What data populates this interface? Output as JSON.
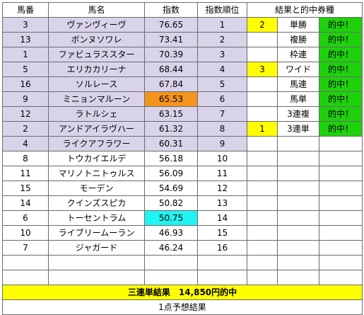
{
  "headers": {
    "umaban": "馬番",
    "bamei": "馬名",
    "shisu": "指数",
    "juni": "指数順位",
    "kekka": "結果と的中券種"
  },
  "horses": [
    {
      "umaban": "3",
      "name": "ヴァンヴィーヴ",
      "index": "76.65",
      "rank": "1"
    },
    {
      "umaban": "13",
      "name": "ボンヌソワレ",
      "index": "73.41",
      "rank": "2"
    },
    {
      "umaban": "1",
      "name": "ファビュラススター",
      "index": "70.39",
      "rank": "3"
    },
    {
      "umaban": "5",
      "name": "エリカカリーナ",
      "index": "68.44",
      "rank": "4"
    },
    {
      "umaban": "16",
      "name": "ソルレース",
      "index": "67.84",
      "rank": "5"
    },
    {
      "umaban": "9",
      "name": "ミニョンマルーン",
      "index": "65.53",
      "rank": "6"
    },
    {
      "umaban": "12",
      "name": "ラトルシェ",
      "index": "63.15",
      "rank": "7"
    },
    {
      "umaban": "2",
      "name": "アンドアイラヴハー",
      "index": "61.32",
      "rank": "8"
    },
    {
      "umaban": "4",
      "name": "ライクアフラワー",
      "index": "60.31",
      "rank": "9"
    },
    {
      "umaban": "8",
      "name": "トウカイエルデ",
      "index": "56.18",
      "rank": "10"
    },
    {
      "umaban": "11",
      "name": "マリノトニトゥルス",
      "index": "56.09",
      "rank": "11"
    },
    {
      "umaban": "15",
      "name": "モーデン",
      "index": "54.69",
      "rank": "12"
    },
    {
      "umaban": "14",
      "name": "クインズスピカ",
      "index": "50.82",
      "rank": "13"
    },
    {
      "umaban": "6",
      "name": "トーセントラム",
      "index": "50.75",
      "rank": "14"
    },
    {
      "umaban": "10",
      "name": "ライブリームーラン",
      "index": "46.93",
      "rank": "15"
    },
    {
      "umaban": "7",
      "name": "ジャガード",
      "index": "46.24",
      "rank": "16"
    }
  ],
  "results": [
    {
      "place": "2",
      "ticket": "単勝",
      "hit": "的中！"
    },
    {
      "place": "",
      "ticket": "複勝",
      "hit": "的中！"
    },
    {
      "place": "",
      "ticket": "枠連",
      "hit": "的中！"
    },
    {
      "place": "3",
      "ticket": "ワイド",
      "hit": "的中！"
    },
    {
      "place": "",
      "ticket": "馬連",
      "hit": "的中！"
    },
    {
      "place": "",
      "ticket": "馬単",
      "hit": "的中！"
    },
    {
      "place": "",
      "ticket": "3連複",
      "hit": "的中！"
    },
    {
      "place": "1",
      "ticket": "3連単",
      "hit": "的中！"
    }
  ],
  "summary": "三連単結果　14,850円的中",
  "footer": "1点予想結果",
  "colors": {
    "top_rows": "#d9d3ea",
    "highlight_6": "#f4941c",
    "highlight_14": "#22f3f3",
    "result_yellow": "#ffff00",
    "hit_green": "#1fd10d"
  }
}
